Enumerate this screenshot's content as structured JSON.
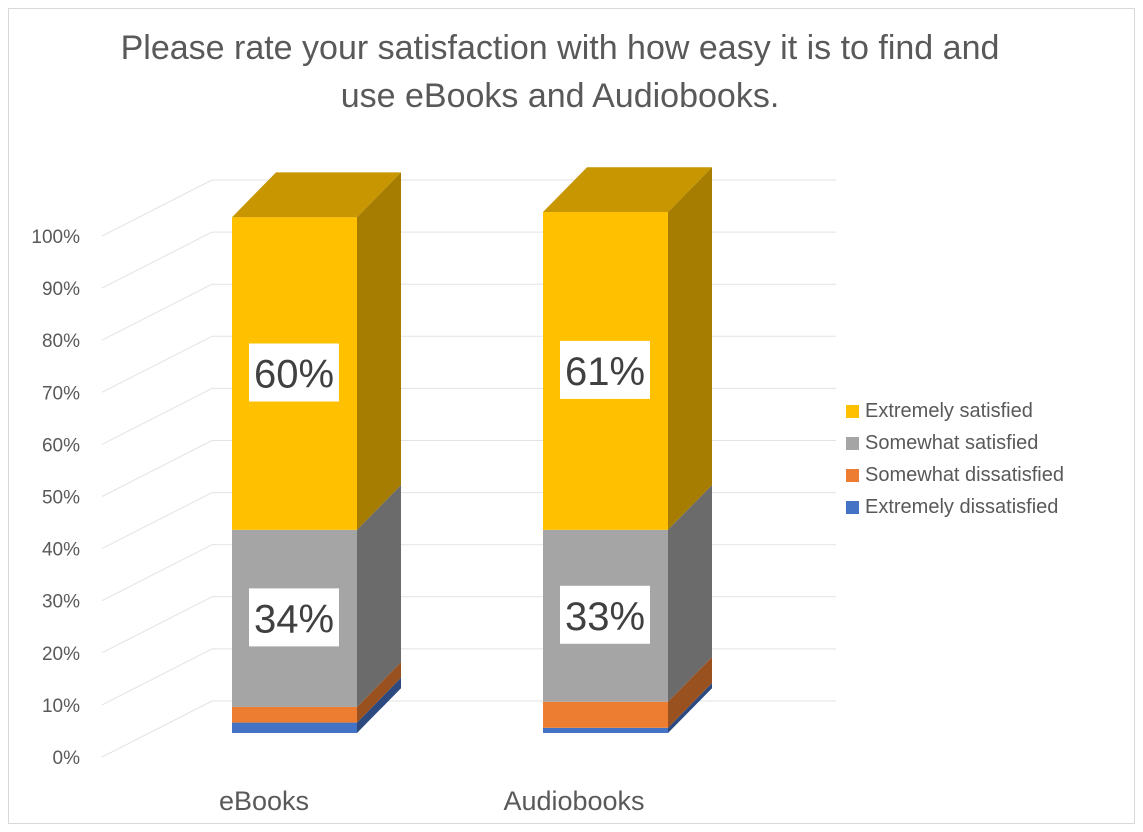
{
  "chart_data": {
    "type": "bar",
    "stacked": true,
    "three_d": true,
    "title": "Please rate your satisfaction with how easy it is to find and use eBooks and Audiobooks.",
    "categories": [
      "eBooks",
      "Audiobooks"
    ],
    "series": [
      {
        "name": "Extremely dissatisfied",
        "values": [
          2,
          1
        ],
        "color": "#4472c4"
      },
      {
        "name": "Somewhat dissatisfied",
        "values": [
          3,
          5
        ],
        "color": "#ed7d31"
      },
      {
        "name": "Somewhat satisfied",
        "values": [
          34,
          33
        ],
        "color": "#a5a5a5",
        "label": [
          "34%",
          "33%"
        ]
      },
      {
        "name": "Extremely satisfied",
        "values": [
          60,
          61
        ],
        "color": "#ffc000",
        "label": [
          "60%",
          "61%"
        ]
      }
    ],
    "yticks": [
      "0%",
      "10%",
      "20%",
      "30%",
      "40%",
      "50%",
      "60%",
      "70%",
      "80%",
      "90%",
      "100%"
    ],
    "ylim": [
      0,
      100
    ],
    "legend_position": "right",
    "legend_order": [
      "Extremely satisfied",
      "Somewhat satisfied",
      "Somewhat dissatisfied",
      "Extremely dissatisfied"
    ],
    "grid": true
  }
}
